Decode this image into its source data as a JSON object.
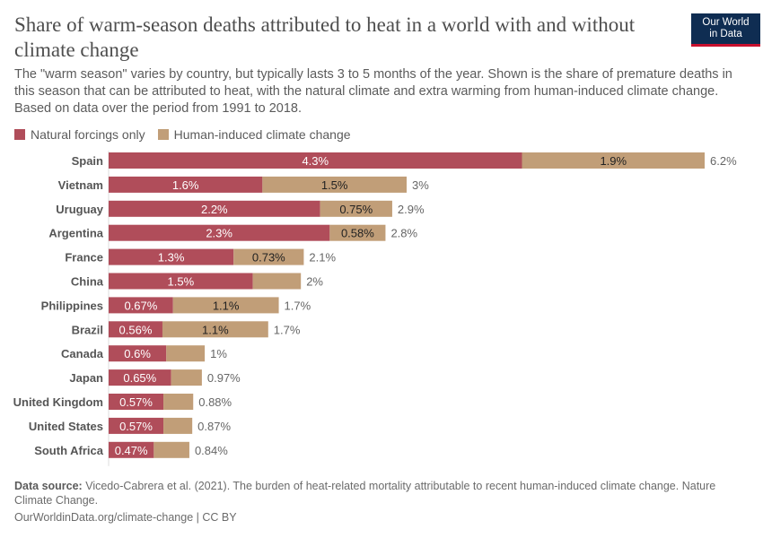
{
  "chart_data": {
    "type": "bar",
    "orientation": "horizontal",
    "stacked": true,
    "title": "Share of warm-season deaths attributed to heat in a world with and without climate change",
    "subtitle": "The \"warm season\" varies by country, but typically lasts 3 to 5 months of the year. Shown is the share of premature deaths in this season that can be attributed to heat, with the natural climate and extra warming from human-induced climate change. Based on data over the period from 1991 to 2018.",
    "unit": "%",
    "xlim": [
      0,
      6.2
    ],
    "grid": false,
    "legend_position": "top-left",
    "categories": [
      "Spain",
      "Vietnam",
      "Uruguay",
      "Argentina",
      "France",
      "China",
      "Philippines",
      "Brazil",
      "Canada",
      "Japan",
      "United Kingdom",
      "United States",
      "South Africa"
    ],
    "series": [
      {
        "name": "Natural forcings only",
        "color": "#b04d5a",
        "values": [
          4.3,
          1.6,
          2.2,
          2.3,
          1.3,
          1.5,
          0.67,
          0.56,
          0.6,
          0.65,
          0.57,
          0.57,
          0.47
        ],
        "labeled": [
          true,
          true,
          true,
          true,
          true,
          true,
          true,
          true,
          true,
          true,
          true,
          true,
          true
        ]
      },
      {
        "name": "Human-induced climate change",
        "color": "#c19e78",
        "values": [
          1.9,
          1.5,
          0.75,
          0.58,
          0.73,
          0.5,
          1.1,
          1.1,
          0.4,
          0.32,
          0.31,
          0.3,
          0.37
        ],
        "labeled": [
          true,
          true,
          true,
          true,
          true,
          false,
          true,
          true,
          false,
          false,
          false,
          false,
          false
        ]
      }
    ],
    "totals": [
      "6.2%",
      "3%",
      "2.9%",
      "2.8%",
      "2.1%",
      "2%",
      "1.7%",
      "1.7%",
      "1%",
      "0.97%",
      "0.88%",
      "0.87%",
      "0.84%"
    ],
    "segment_labels": [
      [
        "4.3%",
        "1.6%",
        "2.2%",
        "2.3%",
        "1.3%",
        "1.5%",
        "0.67%",
        "0.56%",
        "0.6%",
        "0.65%",
        "0.57%",
        "0.57%",
        "0.47%"
      ],
      [
        "1.9%",
        "1.5%",
        "0.75%",
        "0.58%",
        "0.73%",
        "",
        "1.1%",
        "1.1%",
        "",
        "",
        "",
        "",
        ""
      ]
    ]
  },
  "logo": {
    "line1": "Our World",
    "line2": "in Data"
  },
  "footer": {
    "source_label": "Data source:",
    "source_text": " Vicedo-Cabrera et al. (2021). The burden of heat-related mortality attributable to recent human-induced climate change. Nature Climate Change.",
    "url": "OurWorldinData.org/climate-change | CC BY"
  }
}
